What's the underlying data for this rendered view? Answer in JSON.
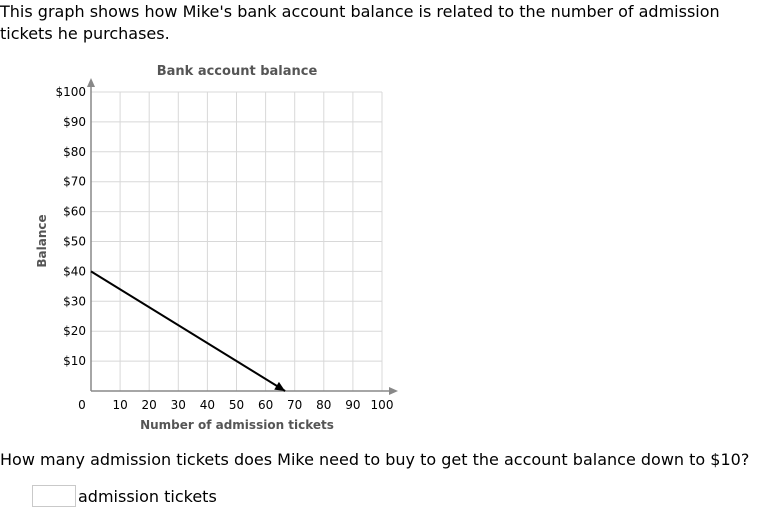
{
  "question": {
    "intro": "This graph shows how Mike's bank account balance is related to the number of admission tickets he purchases.",
    "prompt": "How many admission tickets does Mike need to buy to get the account balance down to $10?",
    "answer_value": "",
    "answer_unit": "admission tickets"
  },
  "chart_data": {
    "type": "line",
    "title": "Bank account balance",
    "xlabel": "Number of admission tickets",
    "ylabel": "Balance",
    "xlim": [
      0,
      100
    ],
    "ylim": [
      0,
      100
    ],
    "x_ticks": [
      10,
      20,
      30,
      40,
      50,
      60,
      70,
      80,
      90,
      100
    ],
    "y_ticks": [
      10,
      20,
      30,
      40,
      50,
      60,
      70,
      80,
      90,
      100
    ],
    "x_tick_labels": [
      "10",
      "20",
      "30",
      "40",
      "50",
      "60",
      "70",
      "80",
      "90",
      "100"
    ],
    "y_tick_labels": [
      "$10",
      "$20",
      "$30",
      "$40",
      "$50",
      "$60",
      "$70",
      "$80",
      "$90",
      "$100"
    ],
    "origin_label": "0",
    "grid": true,
    "series": [
      {
        "x": [
          0,
          66.7
        ],
        "y": [
          40,
          0
        ]
      }
    ],
    "colors": {
      "line": "#000000",
      "grid": "#d8d8d8",
      "axis": "#888888",
      "label": "#555555"
    }
  }
}
